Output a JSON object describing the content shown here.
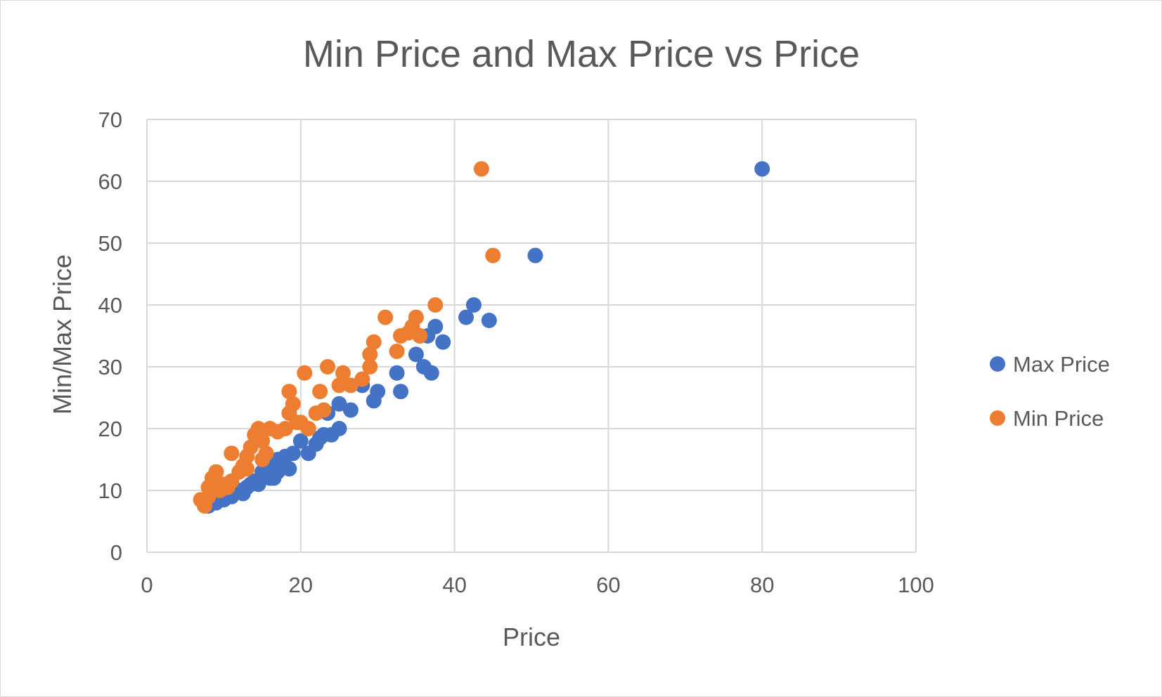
{
  "chart_data": {
    "type": "scatter",
    "title": "Min Price and Max Price vs Price",
    "xlabel": "Price",
    "ylabel": "Min/Max Price",
    "xlim": [
      0,
      100
    ],
    "ylim": [
      0,
      70
    ],
    "x_ticks": [
      0,
      20,
      40,
      60,
      80,
      100
    ],
    "y_ticks": [
      0,
      10,
      20,
      30,
      40,
      50,
      60,
      70
    ],
    "x_tick_labels": [
      "0",
      "20",
      "40",
      "60",
      "80",
      "100"
    ],
    "y_tick_labels": [
      "0",
      "10",
      "20",
      "30",
      "40",
      "50",
      "60",
      "70"
    ],
    "grid": true,
    "legend_position": "right",
    "series": [
      {
        "name": "Max Price",
        "color": "#4472C4",
        "points": [
          [
            8,
            7.5
          ],
          [
            9,
            8
          ],
          [
            10,
            8.5
          ],
          [
            11,
            9
          ],
          [
            12,
            10
          ],
          [
            12.5,
            9.5
          ],
          [
            13,
            10.5
          ],
          [
            13.5,
            11
          ],
          [
            14,
            11.5
          ],
          [
            14.5,
            11
          ],
          [
            15,
            12
          ],
          [
            15.5,
            12.5
          ],
          [
            16,
            12
          ],
          [
            16.5,
            12
          ],
          [
            17,
            13
          ],
          [
            18.5,
            13.5
          ],
          [
            15,
            13
          ],
          [
            16,
            14
          ],
          [
            17,
            15
          ],
          [
            18,
            15.5
          ],
          [
            19,
            16
          ],
          [
            21,
            16
          ],
          [
            20,
            18
          ],
          [
            22,
            17.5
          ],
          [
            22.5,
            18.5
          ],
          [
            23,
            19
          ],
          [
            24,
            19
          ],
          [
            25,
            20
          ],
          [
            23.5,
            22.5
          ],
          [
            25,
            24
          ],
          [
            26.5,
            23
          ],
          [
            29.5,
            24.5
          ],
          [
            30,
            26
          ],
          [
            33,
            26
          ],
          [
            28,
            27
          ],
          [
            32.5,
            29
          ],
          [
            35,
            32
          ],
          [
            36,
            30
          ],
          [
            37,
            29
          ],
          [
            35.5,
            35
          ],
          [
            36.5,
            35
          ],
          [
            37.5,
            36.5
          ],
          [
            38.5,
            34
          ],
          [
            41.5,
            38
          ],
          [
            42.5,
            40
          ],
          [
            44.5,
            37.5
          ],
          [
            50.5,
            48
          ],
          [
            80,
            62
          ]
        ]
      },
      {
        "name": "Min Price",
        "color": "#ED7D31",
        "points": [
          [
            7,
            8.5
          ],
          [
            7.5,
            7.5
          ],
          [
            8,
            9
          ],
          [
            8,
            10.5
          ],
          [
            8.5,
            12
          ],
          [
            9,
            13
          ],
          [
            9,
            11
          ],
          [
            9.5,
            10
          ],
          [
            10,
            11
          ],
          [
            10.5,
            10.5
          ],
          [
            11,
            11.5
          ],
          [
            11,
            16
          ],
          [
            12,
            13
          ],
          [
            12.5,
            14
          ],
          [
            13,
            15.5
          ],
          [
            13.5,
            17
          ],
          [
            14,
            19
          ],
          [
            14.5,
            20
          ],
          [
            15,
            18
          ],
          [
            15.5,
            16
          ],
          [
            16,
            20
          ],
          [
            17,
            19.5
          ],
          [
            18,
            20
          ],
          [
            18.5,
            22.5
          ],
          [
            19,
            24
          ],
          [
            18.5,
            26
          ],
          [
            19.5,
            21
          ],
          [
            20,
            21
          ],
          [
            20.5,
            29
          ],
          [
            21,
            20
          ],
          [
            22,
            22.5
          ],
          [
            22.5,
            26
          ],
          [
            23,
            23
          ],
          [
            23.5,
            30
          ],
          [
            25,
            27
          ],
          [
            25.5,
            29
          ],
          [
            26.5,
            27
          ],
          [
            28,
            28
          ],
          [
            29,
            30
          ],
          [
            29,
            32
          ],
          [
            29.5,
            34
          ],
          [
            31,
            38
          ],
          [
            32.5,
            32.5
          ],
          [
            33,
            35
          ],
          [
            34,
            35.5
          ],
          [
            34.5,
            36.5
          ],
          [
            35,
            38
          ],
          [
            35.5,
            35
          ],
          [
            37.5,
            40
          ],
          [
            43.5,
            62
          ],
          [
            45,
            48
          ],
          [
            15,
            15
          ],
          [
            13,
            13.5
          ]
        ]
      }
    ]
  }
}
